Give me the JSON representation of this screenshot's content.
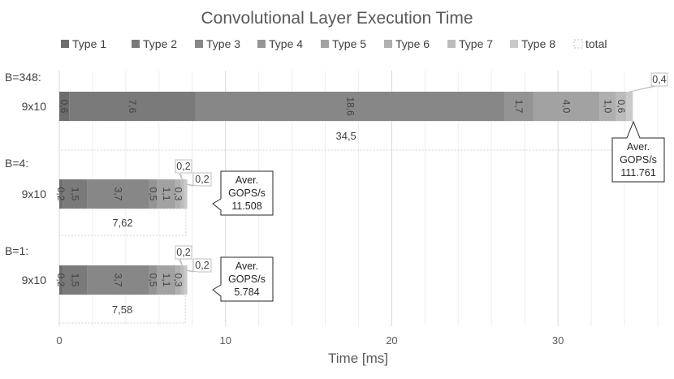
{
  "chart_data": {
    "type": "bar",
    "orientation": "horizontal",
    "stacked": true,
    "title": "Convolutional Layer Execution Time",
    "xlabel": "Time [ms]",
    "xlim": [
      0,
      36
    ],
    "xticks": [
      0,
      10,
      20,
      30
    ],
    "grid": "vertical",
    "legend": {
      "position": "top",
      "entries": [
        "Type 1",
        "Type 2",
        "Type 3",
        "Type 4",
        "Type 5",
        "Type 6",
        "Type 7",
        "Type 8",
        "total"
      ]
    },
    "colors": [
      "#6d6d6d",
      "#7a7a7a",
      "#878787",
      "#949494",
      "#a2a2a2",
      "#afafaf",
      "#bcbcbc",
      "#c9c9c9"
    ],
    "groups": [
      {
        "group_label": "B=348:",
        "category": "9x10",
        "values": [
          0.6,
          7.6,
          18.6,
          1.7,
          4.0,
          1.0,
          0.6,
          0.4
        ],
        "labels": [
          "0,6",
          "7,6",
          "18,6",
          "1,7",
          "4,0",
          "1,0",
          "0,6",
          "0,4"
        ],
        "total": 34.5,
        "total_label": "34,5",
        "callout": [
          "Aver.",
          "GOPS/s",
          "111.761"
        ]
      },
      {
        "group_label": "B=4:",
        "category": "9x10",
        "values": [
          0.2,
          1.5,
          3.7,
          0.5,
          1.1,
          0.3,
          0.2,
          0.2
        ],
        "labels": [
          "0,2",
          "1,5",
          "3,7",
          "0,5",
          "1,1",
          "0,3",
          "0,2",
          "0,2"
        ],
        "total": 7.62,
        "total_label": "7,62",
        "callout": [
          "Aver.",
          "GOPS/s",
          "11.508"
        ]
      },
      {
        "group_label": "B=1:",
        "category": "9x10",
        "values": [
          0.2,
          1.5,
          3.7,
          0.5,
          1.1,
          0.3,
          0.2,
          0.2
        ],
        "labels": [
          "0,2",
          "1,5",
          "3,7",
          "0,5",
          "1,1",
          "0,3",
          "0,2",
          "0,2"
        ],
        "total": 7.58,
        "total_label": "7,58",
        "callout": [
          "Aver.",
          "GOPS/s",
          "5.784"
        ]
      }
    ]
  }
}
